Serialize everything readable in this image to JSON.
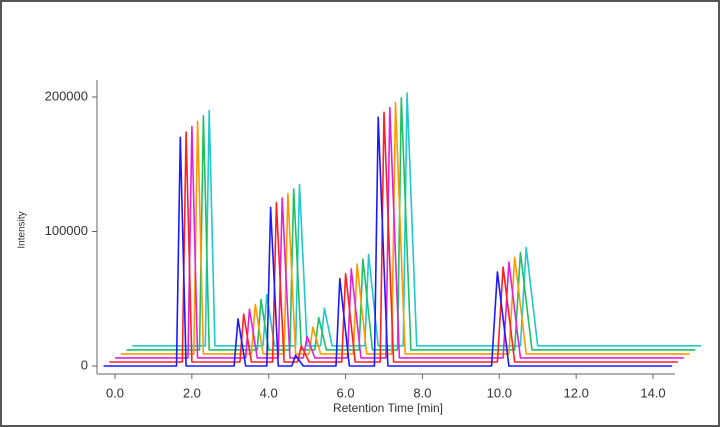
{
  "chart_data": {
    "type": "line",
    "x_label": "Retention Time [min]",
    "y_label": "Intensity",
    "xlim": [
      -0.4,
      15.3
    ],
    "ylim": [
      -5000,
      215000
    ],
    "xticks": [
      {
        "value": 0,
        "label": "0.0"
      },
      {
        "value": 2,
        "label": "2.0"
      },
      {
        "value": 4,
        "label": "4.0"
      },
      {
        "value": 6,
        "label": "6.0"
      },
      {
        "value": 8,
        "label": "8.0"
      },
      {
        "value": 10,
        "label": "10.0"
      },
      {
        "value": 12,
        "label": "12.0"
      },
      {
        "value": 14,
        "label": "14.0"
      }
    ],
    "yticks": [
      0,
      100000,
      200000
    ],
    "series": [
      {
        "color": "#1a1aff",
        "x": [
          -0.3,
          1.6,
          1.7,
          1.85,
          3.1,
          3.2,
          3.4,
          3.95,
          4.05,
          4.25,
          4.6,
          4.7,
          4.9,
          5.75,
          5.85,
          6.1,
          6.75,
          6.85,
          7.1,
          9.8,
          9.95,
          10.25,
          14.5
        ],
        "values": [
          0,
          0,
          170000,
          0,
          0,
          35000,
          0,
          0,
          118000,
          0,
          0,
          8000,
          0,
          0,
          65000,
          0,
          0,
          185000,
          0,
          0,
          70000,
          0,
          0
        ]
      },
      {
        "color": "#ff2020",
        "x": [
          -0.15,
          1.75,
          1.85,
          2.0,
          3.25,
          3.35,
          3.55,
          4.1,
          4.2,
          4.4,
          4.75,
          4.85,
          5.05,
          5.9,
          6.0,
          6.25,
          6.9,
          7.0,
          7.25,
          9.95,
          10.1,
          10.4,
          14.65
        ],
        "values": [
          3000,
          3000,
          174000,
          3000,
          3000,
          38600,
          3000,
          3000,
          121400,
          3000,
          3000,
          15000,
          3000,
          3000,
          68600,
          3000,
          3000,
          188600,
          3000,
          3000,
          73600,
          3000,
          3000
        ]
      },
      {
        "color": "#e020e0",
        "x": [
          0,
          1.9,
          2.0,
          2.15,
          3.4,
          3.5,
          3.7,
          4.25,
          4.35,
          4.55,
          4.9,
          5.0,
          5.2,
          6.05,
          6.15,
          6.4,
          7.05,
          7.15,
          7.4,
          10.1,
          10.25,
          10.55,
          14.8
        ],
        "values": [
          6000,
          6000,
          178000,
          6000,
          6000,
          42200,
          6000,
          6000,
          124800,
          6000,
          6000,
          22000,
          6000,
          6000,
          72200,
          6000,
          6000,
          192200,
          6000,
          6000,
          77200,
          6000,
          6000
        ]
      },
      {
        "color": "#ff9900",
        "x": [
          0.15,
          2.05,
          2.15,
          2.3,
          3.55,
          3.65,
          3.85,
          4.4,
          4.5,
          4.7,
          5.05,
          5.15,
          5.35,
          6.2,
          6.3,
          6.55,
          7.2,
          7.3,
          7.55,
          10.25,
          10.4,
          10.7,
          14.95
        ],
        "values": [
          9000,
          9000,
          182000,
          9000,
          9000,
          45800,
          9000,
          9000,
          128200,
          9000,
          9000,
          29000,
          9000,
          9000,
          75800,
          9000,
          9000,
          195800,
          9000,
          9000,
          80800,
          9000,
          9000
        ]
      },
      {
        "color": "#20c060",
        "x": [
          0.3,
          2.2,
          2.3,
          2.45,
          3.7,
          3.8,
          4.0,
          4.55,
          4.65,
          4.85,
          5.2,
          5.3,
          5.5,
          6.35,
          6.45,
          6.7,
          7.35,
          7.45,
          7.7,
          10.4,
          10.55,
          10.85,
          15.1
        ],
        "values": [
          12000,
          12000,
          186000,
          12000,
          12000,
          49400,
          12000,
          12000,
          131600,
          12000,
          12000,
          36000,
          12000,
          12000,
          79400,
          12000,
          12000,
          199400,
          12000,
          12000,
          84400,
          12000,
          12000
        ]
      },
      {
        "color": "#20c8d0",
        "x": [
          0.45,
          2.35,
          2.45,
          2.6,
          3.85,
          3.95,
          4.15,
          4.7,
          4.8,
          5.0,
          5.35,
          5.45,
          5.65,
          6.5,
          6.6,
          6.85,
          7.5,
          7.6,
          7.85,
          10.55,
          10.7,
          11.0,
          15.25
        ],
        "values": [
          15000,
          15000,
          190000,
          15000,
          15000,
          53000,
          15000,
          15000,
          135000,
          15000,
          15000,
          43000,
          15000,
          15000,
          83000,
          15000,
          15000,
          203000,
          15000,
          15000,
          88000,
          15000,
          15000
        ]
      }
    ]
  }
}
